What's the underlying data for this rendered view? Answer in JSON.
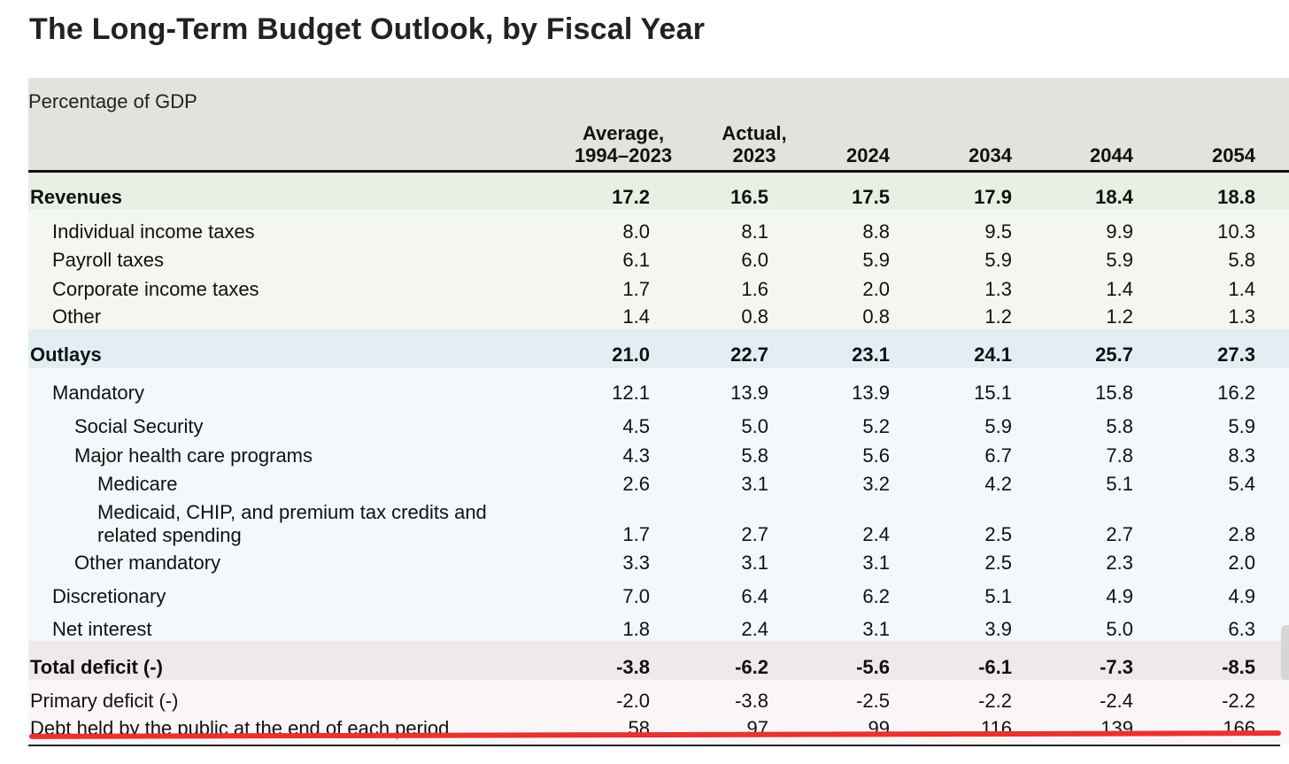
{
  "title": "The Long-Term Budget Outlook, by Fiscal Year",
  "unit": "Percentage of GDP",
  "columns": [
    {
      "line1": "Average,",
      "line2": "1994–2023"
    },
    {
      "line1": "Actual,",
      "line2": "2023"
    },
    {
      "line1": "",
      "line2": "2024"
    },
    {
      "line1": "",
      "line2": "2034"
    },
    {
      "line1": "",
      "line2": "2044"
    },
    {
      "line1": "",
      "line2": "2054"
    }
  ],
  "rows": [
    {
      "label": "Revenues",
      "values": [
        "17.2",
        "16.5",
        "17.5",
        "17.9",
        "18.4",
        "18.8"
      ]
    },
    {
      "label": "Individual income taxes",
      "values": [
        "8.0",
        "8.1",
        "8.8",
        "9.5",
        "9.9",
        "10.3"
      ]
    },
    {
      "label": "Payroll taxes",
      "values": [
        "6.1",
        "6.0",
        "5.9",
        "5.9",
        "5.9",
        "5.8"
      ]
    },
    {
      "label": "Corporate income taxes",
      "values": [
        "1.7",
        "1.6",
        "2.0",
        "1.3",
        "1.4",
        "1.4"
      ]
    },
    {
      "label": "Other",
      "values": [
        "1.4",
        "0.8",
        "0.8",
        "1.2",
        "1.2",
        "1.3"
      ]
    },
    {
      "label": "Outlays",
      "values": [
        "21.0",
        "22.7",
        "23.1",
        "24.1",
        "25.7",
        "27.3"
      ]
    },
    {
      "label": "Mandatory",
      "values": [
        "12.1",
        "13.9",
        "13.9",
        "15.1",
        "15.8",
        "16.2"
      ]
    },
    {
      "label": "Social Security",
      "values": [
        "4.5",
        "5.0",
        "5.2",
        "5.9",
        "5.8",
        "5.9"
      ]
    },
    {
      "label": "Major health care programs",
      "values": [
        "4.3",
        "5.8",
        "5.6",
        "6.7",
        "7.8",
        "8.3"
      ]
    },
    {
      "label": "Medicare",
      "values": [
        "2.6",
        "3.1",
        "3.2",
        "4.2",
        "5.1",
        "5.4"
      ]
    },
    {
      "label": "Medicaid, CHIP, and premium tax credits and",
      "label2": "related spending",
      "values": [
        "1.7",
        "2.7",
        "2.4",
        "2.5",
        "2.7",
        "2.8"
      ]
    },
    {
      "label": "Other mandatory",
      "values": [
        "3.3",
        "3.1",
        "3.1",
        "2.5",
        "2.3",
        "2.0"
      ]
    },
    {
      "label": "Discretionary",
      "values": [
        "7.0",
        "6.4",
        "6.2",
        "5.1",
        "4.9",
        "4.9"
      ]
    },
    {
      "label": "Net interest",
      "values": [
        "1.8",
        "2.4",
        "3.1",
        "3.9",
        "5.0",
        "6.3"
      ]
    },
    {
      "label": "Total deficit (-)",
      "values": [
        "-3.8",
        "-6.2",
        "-5.6",
        "-6.1",
        "-7.3",
        "-8.5"
      ]
    },
    {
      "label": "Primary deficit (-)",
      "values": [
        "-2.0",
        "-3.8",
        "-2.5",
        "-2.2",
        "-2.4",
        "-2.2"
      ]
    },
    {
      "label": "Debt held by the public at the end of each period",
      "values": [
        "58",
        "97",
        "99",
        "116",
        "139",
        "166"
      ]
    }
  ],
  "highlight_color": "#e8322f"
}
